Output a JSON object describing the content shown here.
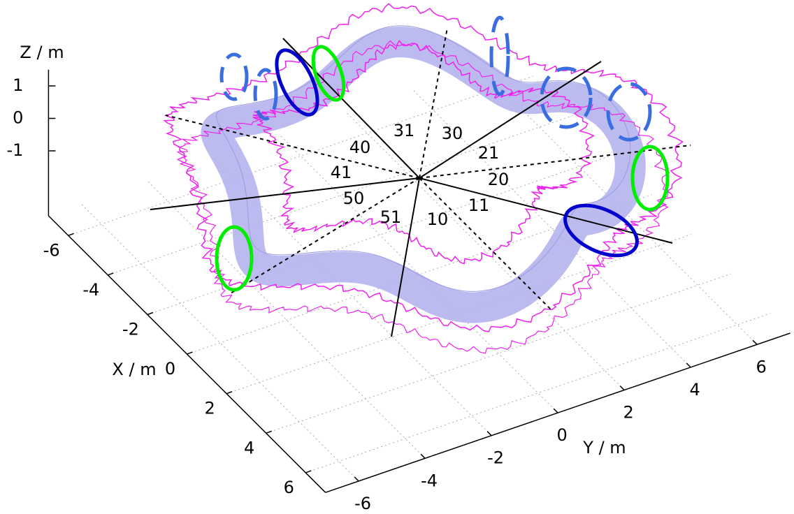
{
  "chart_data": {
    "type": "surface3d",
    "xlabel": "X / m",
    "ylabel": "Y / m",
    "zlabel": "Z / m",
    "xlim": [
      -7,
      7
    ],
    "ylim": [
      -7,
      7
    ],
    "zlim": [
      -3,
      1.5
    ],
    "xticks": [
      -6,
      -4,
      -2,
      0,
      2,
      4,
      6
    ],
    "yticks": [
      -6,
      -4,
      -2,
      0,
      2,
      4,
      6
    ],
    "zticks": [
      -1,
      0,
      1
    ],
    "grid": true,
    "annotations": [
      "31",
      "30",
      "40",
      "21",
      "41",
      "20",
      "50",
      "11",
      "51",
      "10"
    ]
  }
}
